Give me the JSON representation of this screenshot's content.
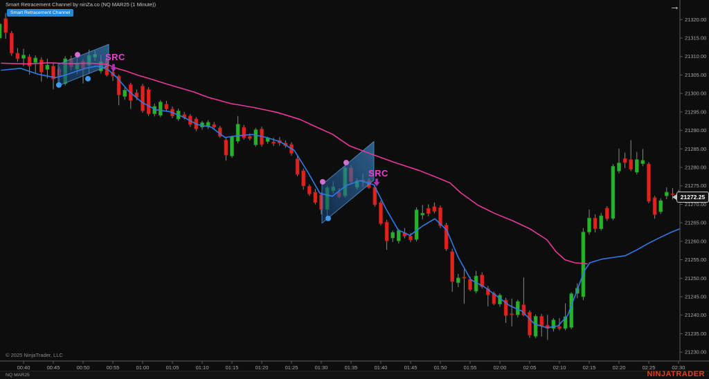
{
  "header": {
    "title": "Smart Retracement Channel by ninZa.co (NQ MAR25 (1 Minute))"
  },
  "toolbar": {
    "indicator_button_label": "Smart Retracement Channel"
  },
  "icons": {
    "jump_arrow": "→"
  },
  "footer": {
    "copyright": "© 2025 NinjaTrader, LLC",
    "brand": "NINJATRADER",
    "instrument_tab": "NQ MAR25"
  },
  "price_axis": {
    "last_price_label": "21272.25",
    "labels": [
      "21320.00",
      "21315.00",
      "21310.00",
      "21305.00",
      "21300.00",
      "21295.00",
      "21290.00",
      "21285.00",
      "21280.00",
      "21275.00",
      "21270.00",
      "21265.00",
      "21260.00",
      "21255.00",
      "21250.00",
      "21245.00",
      "21240.00",
      "21235.00",
      "21230.00"
    ]
  },
  "time_axis": {
    "labels": [
      "00:40",
      "00:45",
      "00:50",
      "00:55",
      "01:00",
      "01:05",
      "01:10",
      "01:15",
      "01:20",
      "01:25",
      "01:30",
      "01:35",
      "01:40",
      "01:45",
      "01:50",
      "01:55",
      "02:00",
      "02:05",
      "02:10",
      "02:15",
      "02:20",
      "02:25",
      "02:30"
    ]
  },
  "colors": {
    "background": "#0d0d0d",
    "up": "#26b22a",
    "up_border": "#1c8f20",
    "down": "#df231d",
    "down_border": "#b01914",
    "wick": "#8a8a8a",
    "ma_fast": "#2f7ce8",
    "ma_slow": "#e8399b",
    "channel_fill_dark": "#143a6b",
    "channel_fill_light": "#3f8fd4",
    "channel_border": "#5aa0e0",
    "src_label": "#ef3fd3",
    "signal_arrow": "#a935b5",
    "dot_blue": "#3c9cf0",
    "dot_pink": "#cf6ecf",
    "axis_text": "#a8a8a8",
    "axis_line": "#5a5a5a"
  },
  "chart_data": {
    "type": "candlestick",
    "title": "Smart Retracement Channel by ninZa.co",
    "symbol": "NQ MAR25",
    "interval": "1 Minute",
    "start_time": "00:36",
    "interval_minutes": 1,
    "last_price": 21272.25,
    "y_range": {
      "top": 21325.3,
      "bottom": 21227.6
    },
    "candles": [
      [
        21315.0,
        21319.2,
        21314.5,
        21318.8
      ],
      [
        21320.3,
        21321.8,
        21314.8,
        21316.5
      ],
      [
        21316.3,
        21316.9,
        21310.2,
        21310.9
      ],
      [
        21310.9,
        21312.3,
        21308.6,
        21309.4
      ],
      [
        21309.5,
        21312.1,
        21307.4,
        21310.4
      ],
      [
        21309.9,
        21310.6,
        21305.1,
        21307.4
      ],
      [
        21308.4,
        21310.3,
        21305.4,
        21309.6
      ],
      [
        21309.1,
        21309.8,
        21303.2,
        21305.8
      ],
      [
        21306.5,
        21309.4,
        21304.1,
        21307.7
      ],
      [
        21307.4,
        21308.1,
        21301.1,
        21303.9
      ],
      [
        21306.6,
        21307.3,
        21302.4,
        21304.8
      ],
      [
        21302.7,
        21310.1,
        21302.2,
        21309.4
      ],
      [
        21309.4,
        21310.2,
        21306.3,
        21307.2
      ],
      [
        21306.6,
        21310.8,
        21305.2,
        21308.1
      ],
      [
        21308.7,
        21309.3,
        21302.7,
        21306.8
      ],
      [
        21307.7,
        21311.9,
        21305.4,
        21310.3
      ],
      [
        21309.8,
        21311.6,
        21308.8,
        21310.6
      ],
      [
        21306.1,
        21310.5,
        21305.4,
        21308.6
      ],
      [
        21309.1,
        21309.6,
        21304.6,
        21305.0
      ],
      [
        21305.8,
        21306.6,
        21303.4,
        21304.7
      ],
      [
        21304.7,
        21305.1,
        21296.8,
        21299.6
      ],
      [
        21299.2,
        21301.6,
        21298.3,
        21300.9
      ],
      [
        21302.4,
        21302.9,
        21295.8,
        21298.1
      ],
      [
        21300.2,
        21301.1,
        21298.2,
        21299.0
      ],
      [
        21302.0,
        21302.6,
        21294.8,
        21295.3
      ],
      [
        21301.1,
        21301.7,
        21293.9,
        21294.5
      ],
      [
        21294.5,
        21297.3,
        21293.8,
        21296.5
      ],
      [
        21294.1,
        21298.2,
        21293.6,
        21297.7
      ],
      [
        21297.1,
        21298.0,
        21295.2,
        21295.8
      ],
      [
        21295.8,
        21296.5,
        21293.3,
        21293.9
      ],
      [
        21293.1,
        21295.9,
        21292.6,
        21295.3
      ],
      [
        21294.3,
        21295.0,
        21293.0,
        21293.5
      ],
      [
        21293.9,
        21294.4,
        21291.0,
        21291.6
      ],
      [
        21293.1,
        21293.6,
        21289.8,
        21290.4
      ],
      [
        21290.9,
        21292.6,
        21290.2,
        21292.1
      ],
      [
        21291.2,
        21292.8,
        21290.4,
        21292.2
      ],
      [
        21291.6,
        21292.3,
        21290.5,
        21290.9
      ],
      [
        21290.7,
        21291.2,
        21288.0,
        21288.4
      ],
      [
        21287.4,
        21288.0,
        21281.8,
        21283.3
      ],
      [
        21283.1,
        21288.6,
        21282.6,
        21288.3
      ],
      [
        21287.1,
        21293.9,
        21286.5,
        21291.7
      ],
      [
        21290.8,
        21291.5,
        21287.5,
        21288.0
      ],
      [
        21288.4,
        21289.2,
        21287.3,
        21287.8
      ],
      [
        21286.1,
        21290.7,
        21285.6,
        21290.2
      ],
      [
        21290.4,
        21291.0,
        21285.6,
        21286.2
      ],
      [
        21287.0,
        21288.3,
        21286.4,
        21287.9
      ],
      [
        21286.9,
        21288.0,
        21285.8,
        21286.5
      ],
      [
        21287.3,
        21288.2,
        21285.9,
        21286.6
      ],
      [
        21286.6,
        21287.3,
        21285.3,
        21285.9
      ],
      [
        21286.2,
        21286.8,
        21283.2,
        21283.8
      ],
      [
        21282.3,
        21283.0,
        21277.6,
        21278.1
      ],
      [
        21279.1,
        21279.7,
        21274.0,
        21275.0
      ],
      [
        21274.9,
        21275.4,
        21272.3,
        21272.8
      ],
      [
        21273.3,
        21274.2,
        21270.0,
        21270.5
      ],
      [
        21272.6,
        21273.2,
        21267.3,
        21268.6
      ],
      [
        21268.6,
        21275.0,
        21266.7,
        21274.5
      ],
      [
        21273.7,
        21276.3,
        21272.9,
        21274.8
      ],
      [
        21273.3,
        21274.4,
        21271.6,
        21272.0
      ],
      [
        21272.3,
        21281.4,
        21271.8,
        21279.9
      ],
      [
        21279.9,
        21280.6,
        21275.6,
        21276.1
      ],
      [
        21274.6,
        21277.1,
        21274.0,
        21276.4
      ],
      [
        21276.6,
        21278.3,
        21274.7,
        21276.1
      ],
      [
        21276.4,
        21277.0,
        21274.2,
        21274.6
      ],
      [
        21274.6,
        21275.2,
        21269.4,
        21269.9
      ],
      [
        21270.5,
        21271.0,
        21264.3,
        21264.8
      ],
      [
        21265.2,
        21265.8,
        21257.7,
        21260.1
      ],
      [
        21260.9,
        21262.9,
        21259.8,
        21262.4
      ],
      [
        21260.1,
        21263.3,
        21259.4,
        21262.9
      ],
      [
        21262.3,
        21263.6,
        21260.8,
        21261.4
      ],
      [
        21261.4,
        21262.2,
        21259.8,
        21260.4
      ],
      [
        21260.5,
        21269.2,
        21260.0,
        21268.5
      ],
      [
        21267.1,
        21269.8,
        21265.9,
        21267.6
      ],
      [
        21268.9,
        21270.0,
        21266.8,
        21267.5
      ],
      [
        21269.4,
        21270.5,
        21267.6,
        21268.1
      ],
      [
        21269.1,
        21269.7,
        21263.6,
        21264.2
      ],
      [
        21264.4,
        21265.0,
        21257.4,
        21257.9
      ],
      [
        21257.2,
        21258.0,
        21246.3,
        21249.1
      ],
      [
        21248.8,
        21251.2,
        21247.6,
        21250.1
      ],
      [
        21250.3,
        21252.5,
        21243.1,
        21250.0
      ],
      [
        21249.7,
        21250.4,
        21246.5,
        21246.9
      ],
      [
        21246.5,
        21252.0,
        21245.9,
        21250.6
      ],
      [
        21250.9,
        21251.6,
        21247.2,
        21247.7
      ],
      [
        21247.2,
        21247.9,
        21242.4,
        21245.5
      ],
      [
        21245.9,
        21246.4,
        21242.7,
        21243.1
      ],
      [
        21243.0,
        21245.9,
        21242.3,
        21245.4
      ],
      [
        21244.1,
        21244.7,
        21237.9,
        21239.9
      ],
      [
        21240.4,
        21244.5,
        21237.0,
        21240.1
      ],
      [
        21240.1,
        21244.2,
        21239.4,
        21243.7
      ],
      [
        21242.8,
        21250.2,
        21239.7,
        21240.0
      ],
      [
        21240.8,
        21241.3,
        21233.9,
        21234.6
      ],
      [
        21234.3,
        21240.2,
        21233.8,
        21239.7
      ],
      [
        21239.7,
        21240.3,
        21234.2,
        21237.1
      ],
      [
        21237.3,
        21240.1,
        21233.3,
        21236.4
      ],
      [
        21236.4,
        21239.2,
        21235.6,
        21238.7
      ],
      [
        21236.9,
        21239.2,
        21235.9,
        21236.4
      ],
      [
        21236.4,
        21243.2,
        21235.9,
        21239.6
      ],
      [
        21236.7,
        21246.2,
        21236.2,
        21245.8
      ],
      [
        21245.9,
        21248.6,
        21244.6,
        21247.3
      ],
      [
        21245.0,
        21263.6,
        21244.1,
        21262.5
      ],
      [
        21262.5,
        21268.6,
        21261.8,
        21266.3
      ],
      [
        21266.3,
        21267.3,
        21262.4,
        21263.4
      ],
      [
        21263.4,
        21267.7,
        21262.9,
        21266.9
      ],
      [
        21269.0,
        21269.5,
        21265.5,
        21266.1
      ],
      [
        21266.2,
        21280.9,
        21265.7,
        21280.3
      ],
      [
        21279.0,
        21285.1,
        21278.4,
        21281.2
      ],
      [
        21282.4,
        21284.0,
        21279.8,
        21281.3
      ],
      [
        21282.1,
        21287.4,
        21279.0,
        21279.5
      ],
      [
        21278.7,
        21284.2,
        21278.1,
        21282.1
      ],
      [
        21281.0,
        21285.0,
        21280.3,
        21281.9
      ],
      [
        21280.9,
        21281.4,
        21270.3,
        21270.8
      ],
      [
        21271.8,
        21272.3,
        21266.1,
        21267.2
      ],
      [
        21268.0,
        21271.6,
        21267.4,
        21271.0
      ],
      [
        21272.3,
        21274.6,
        21271.4,
        21273.3
      ],
      [
        21272.9,
        21274.4,
        21271.3,
        21272.7
      ],
      [
        21272.2,
        21273.9,
        21271.7,
        21273.1
      ]
    ],
    "indicator_overlays": {
      "ma_slow_points": [
        [
          2,
          21308.2
        ],
        [
          40,
          21308.0
        ],
        [
          70,
          21308.3
        ],
        [
          100,
          21308.1
        ],
        [
          130,
          21308.2
        ],
        [
          155,
          21307.9
        ],
        [
          163,
          21307.2
        ],
        [
          172,
          21306.6
        ],
        [
          180,
          21306.2
        ],
        [
          200,
          21304.9
        ],
        [
          220,
          21303.8
        ],
        [
          240,
          21302.6
        ],
        [
          260,
          21301.5
        ],
        [
          280,
          21300.4
        ],
        [
          300,
          21299.0
        ],
        [
          333,
          21297.3
        ],
        [
          367,
          21296.2
        ],
        [
          400,
          21294.9
        ],
        [
          433,
          21293.0
        ],
        [
          455,
          21291.1
        ],
        [
          480,
          21289.0
        ],
        [
          505,
          21285.8
        ],
        [
          538,
          21283.5
        ],
        [
          572,
          21281.2
        ],
        [
          605,
          21279.2
        ],
        [
          628,
          21277.5
        ],
        [
          650,
          21275.8
        ],
        [
          665,
          21273.2
        ],
        [
          690,
          21269.8
        ],
        [
          715,
          21267.5
        ],
        [
          740,
          21265.6
        ],
        [
          765,
          21263.4
        ],
        [
          790,
          21260.4
        ],
        [
          803,
          21257.2
        ],
        [
          816,
          21255.0
        ],
        [
          830,
          21254.2
        ],
        [
          848,
          21253.9
        ]
      ],
      "ma_fast_points": [
        [
          2,
          21306.3
        ],
        [
          30,
          21306.8
        ],
        [
          55,
          21305.2
        ],
        [
          80,
          21304.3
        ],
        [
          95,
          21305.0
        ],
        [
          110,
          21306.0
        ],
        [
          125,
          21306.9
        ],
        [
          140,
          21307.4
        ],
        [
          155,
          21306.6
        ],
        [
          168,
          21304.5
        ],
        [
          185,
          21300.8
        ],
        [
          205,
          21297.6
        ],
        [
          225,
          21295.6
        ],
        [
          245,
          21295.1
        ],
        [
          265,
          21293.6
        ],
        [
          285,
          21291.6
        ],
        [
          305,
          21290.9
        ],
        [
          325,
          21288.1
        ],
        [
          345,
          21288.6
        ],
        [
          365,
          21288.9
        ],
        [
          385,
          21288.1
        ],
        [
          405,
          21286.9
        ],
        [
          425,
          21284.6
        ],
        [
          445,
          21278.6
        ],
        [
          462,
          21273.0
        ],
        [
          480,
          21272.2
        ],
        [
          500,
          21275.1
        ],
        [
          520,
          21276.4
        ],
        [
          540,
          21275.3
        ],
        [
          558,
          21268.6
        ],
        [
          575,
          21263.1
        ],
        [
          592,
          21261.6
        ],
        [
          610,
          21264.1
        ],
        [
          628,
          21266.1
        ],
        [
          645,
          21263.1
        ],
        [
          662,
          21255.6
        ],
        [
          680,
          21249.6
        ],
        [
          700,
          21247.6
        ],
        [
          718,
          21245.1
        ],
        [
          736,
          21242.6
        ],
        [
          754,
          21241.1
        ],
        [
          772,
          21237.6
        ],
        [
          790,
          21236.6
        ],
        [
          806,
          21237.1
        ],
        [
          820,
          21240.0
        ],
        [
          832,
          21246.0
        ],
        [
          844,
          21252.0
        ],
        [
          852,
          21254.2
        ],
        [
          870,
          21255.2
        ],
        [
          903,
          21256.1
        ],
        [
          920,
          21257.7
        ],
        [
          937,
          21259.5
        ],
        [
          953,
          21261.0
        ],
        [
          970,
          21262.5
        ],
        [
          982,
          21263.4
        ]
      ],
      "channels": [
        {
          "points": [
            [
              84,
              21302.1
            ],
            [
              157,
              21307.5
            ],
            [
              157,
              21313.3
            ],
            [
              84,
              21307.9
            ]
          ]
        },
        {
          "points": [
            [
              465,
              21264.9
            ],
            [
              540,
              21276.5
            ],
            [
              540,
              21287.0
            ],
            [
              465,
              21275.3
            ]
          ]
        }
      ],
      "dots": [
        {
          "x": 85,
          "price": 21302.3,
          "color": "blue"
        },
        {
          "x": 127,
          "price": 21304.0,
          "color": "blue"
        },
        {
          "x": 112,
          "price": 21310.5,
          "color": "pink"
        },
        {
          "x": 474,
          "price": 21266.2,
          "color": "blue"
        },
        {
          "x": 466,
          "price": 21276.1,
          "color": "pink"
        },
        {
          "x": 500,
          "price": 21281.3,
          "color": "pink"
        }
      ],
      "arrows": [
        {
          "x": 164,
          "price": 21305.9
        },
        {
          "x": 544,
          "price": 21274.9
        }
      ],
      "labels": [
        {
          "text": "SRC",
          "x": 152,
          "price": 21309.8
        },
        {
          "text": "SRC",
          "x": 532,
          "price": 21278.3
        }
      ]
    }
  }
}
